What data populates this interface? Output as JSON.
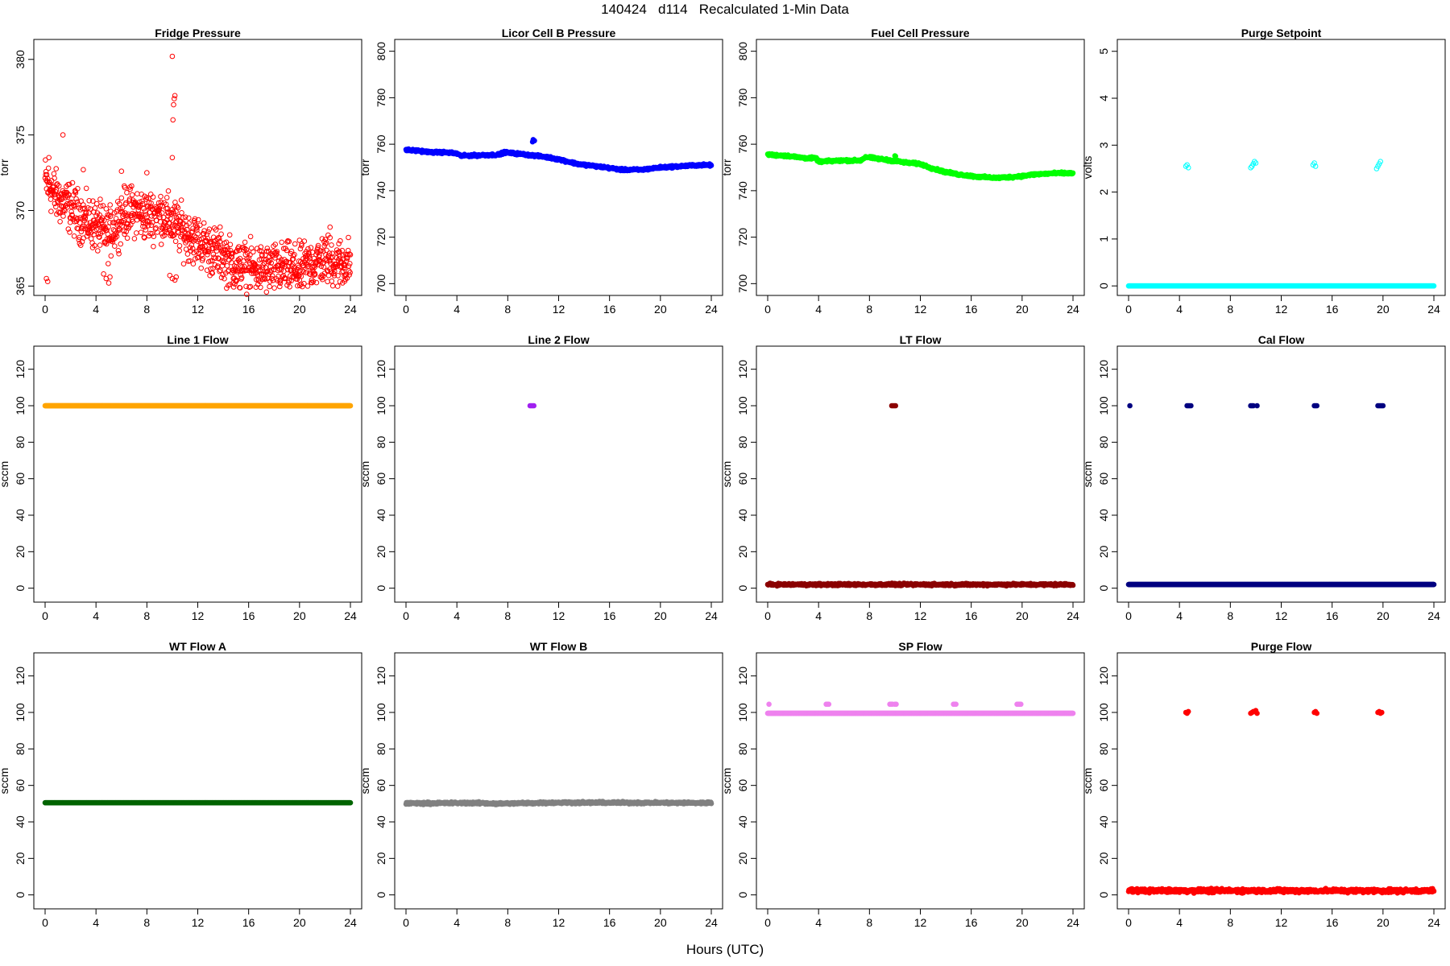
{
  "figure": {
    "title": "140424   d114   Recalculated 1-Min Data",
    "xlabel": "Hours (UTC)"
  },
  "chart_data": [
    {
      "type": "scatter",
      "title": "Fridge Pressure",
      "ylabel": "torr",
      "xlim": [
        0,
        24
      ],
      "ylim": [
        364.7,
        381
      ],
      "yticks": [
        365,
        370,
        375,
        380
      ],
      "xticks": [
        0,
        4,
        8,
        12,
        16,
        20,
        24
      ],
      "marker": "open",
      "color": "#ff0000",
      "series": [
        {
          "segments": [
            [
              0,
              372.0
            ],
            [
              1,
              370.8
            ],
            [
              2,
              370.2
            ],
            [
              3,
              369.4
            ],
            [
              4,
              369.0
            ],
            [
              5,
              368.4
            ],
            [
              6,
              369.7
            ],
            [
              7,
              370.0
            ],
            [
              8,
              369.6
            ],
            [
              9,
              369.8
            ],
            [
              10,
              369.2
            ],
            [
              11,
              368.5
            ],
            [
              12,
              368.0
            ],
            [
              13,
              367.4
            ],
            [
              14,
              367.0
            ],
            [
              15,
              366.3
            ],
            [
              16,
              366.2
            ],
            [
              17,
              366.1
            ],
            [
              18,
              366.1
            ],
            [
              19,
              366.2
            ],
            [
              20,
              366.0
            ],
            [
              21,
              366.5
            ],
            [
              22,
              366.8
            ],
            [
              23,
              366.5
            ],
            [
              24,
              366.6
            ]
          ],
          "spread": 1.4
        },
        {
          "points": [
            [
              0.1,
              365.5
            ],
            [
              0.2,
              365.3
            ],
            [
              4.6,
              365.8
            ],
            [
              4.8,
              365.5
            ],
            [
              5.0,
              365.2
            ],
            [
              5.1,
              365.6
            ],
            [
              9.8,
              365.7
            ],
            [
              10.0,
              365.5
            ],
            [
              10.2,
              365.4
            ],
            [
              10.3,
              365.6
            ],
            [
              1.4,
              375.0
            ],
            [
              0.3,
              373.5
            ],
            [
              3.0,
              372.7
            ],
            [
              6.0,
              372.6
            ],
            [
              8.0,
              372.5
            ],
            [
              10.0,
              373.5
            ],
            [
              10.05,
              376.0
            ],
            [
              10.1,
              377.0
            ],
            [
              10.15,
              377.4
            ],
            [
              10.2,
              377.6
            ],
            [
              10.0,
              380.2
            ],
            [
              14.8,
              365.5
            ],
            [
              15.0,
              365.3
            ],
            [
              20.0,
              365.4
            ],
            [
              22.4,
              368.9
            ]
          ]
        }
      ]
    },
    {
      "type": "scatter",
      "title": "Licor Cell B Pressure",
      "ylabel": "torr",
      "xlim": [
        0,
        24
      ],
      "ylim": [
        697,
        803
      ],
      "yticks": [
        700,
        720,
        740,
        760,
        780,
        800
      ],
      "xticks": [
        0,
        4,
        8,
        12,
        16,
        20,
        24
      ],
      "marker": "filled",
      "color": "#0000ff",
      "series": [
        {
          "segments": [
            [
              0,
              757.5
            ],
            [
              1,
              757.2
            ],
            [
              2,
              756.5
            ],
            [
              3,
              756.5
            ],
            [
              4,
              756.0
            ],
            [
              4.3,
              755.0
            ],
            [
              6,
              755.3
            ],
            [
              7.3,
              755.5
            ],
            [
              7.7,
              756.5
            ],
            [
              9,
              755.8
            ],
            [
              11,
              754.5
            ],
            [
              12,
              753.5
            ],
            [
              13.5,
              751.5
            ],
            [
              15,
              750.5
            ],
            [
              17,
              749.0
            ],
            [
              18.5,
              749.0
            ],
            [
              20,
              750.0
            ],
            [
              21.5,
              750.5
            ],
            [
              23,
              751.0
            ],
            [
              24,
              751.0
            ]
          ],
          "spread": 0.4
        },
        {
          "points": [
            [
              10.0,
              762.0
            ],
            [
              10.1,
              761.5
            ],
            [
              9.95,
              761.0
            ]
          ]
        }
      ]
    },
    {
      "type": "scatter",
      "title": "Fuel Cell Pressure",
      "ylabel": "torr",
      "xlim": [
        0,
        24
      ],
      "ylim": [
        697,
        803
      ],
      "yticks": [
        700,
        720,
        740,
        760,
        780,
        800
      ],
      "xticks": [
        0,
        4,
        8,
        12,
        16,
        20,
        24
      ],
      "marker": "filled",
      "color": "#00ff00",
      "series": [
        {
          "segments": [
            [
              0,
              755.5
            ],
            [
              1.5,
              755.0
            ],
            [
              3,
              754.0
            ],
            [
              3.8,
              754.0
            ],
            [
              4,
              752.5
            ],
            [
              6,
              753.0
            ],
            [
              7.3,
              753.0
            ],
            [
              7.7,
              754.5
            ],
            [
              9,
              753.5
            ],
            [
              11,
              752.0
            ],
            [
              12,
              751.5
            ],
            [
              13,
              749.5
            ],
            [
              14,
              748.0
            ],
            [
              15,
              747.0
            ],
            [
              16.5,
              746.0
            ],
            [
              18,
              745.5
            ],
            [
              19.5,
              746.0
            ],
            [
              21,
              747.0
            ],
            [
              22.5,
              747.5
            ],
            [
              24,
              747.5
            ]
          ],
          "spread": 0.4
        },
        {
          "points": [
            [
              10.0,
              755.0
            ],
            [
              10.05,
              754.8
            ]
          ]
        }
      ]
    },
    {
      "type": "scatter",
      "title": "Purge Setpoint",
      "ylabel": "volts",
      "xlim": [
        0,
        24
      ],
      "ylim": [
        -0.1,
        5.15
      ],
      "yticks": [
        0,
        1,
        2,
        3,
        4,
        5
      ],
      "xticks": [
        0,
        4,
        8,
        12,
        16,
        20,
        24
      ],
      "marker": "open",
      "color": "#00ffff",
      "series": [
        {
          "segments": [
            [
              0,
              0.0
            ],
            [
              24,
              0.0
            ]
          ],
          "spread": 0.0
        },
        {
          "points": [
            [
              4.5,
              2.55
            ],
            [
              4.6,
              2.58
            ],
            [
              4.7,
              2.52
            ],
            [
              9.6,
              2.52
            ],
            [
              9.7,
              2.55
            ],
            [
              9.8,
              2.6
            ],
            [
              9.9,
              2.65
            ],
            [
              10.0,
              2.62
            ],
            [
              14.5,
              2.58
            ],
            [
              14.6,
              2.62
            ],
            [
              14.7,
              2.55
            ],
            [
              19.5,
              2.5
            ],
            [
              19.6,
              2.55
            ],
            [
              19.7,
              2.6
            ],
            [
              19.8,
              2.65
            ]
          ]
        }
      ]
    },
    {
      "type": "scatter",
      "title": "Line 1 Flow",
      "ylabel": "sccm",
      "xlim": [
        0,
        24
      ],
      "ylim": [
        -5,
        130
      ],
      "yticks": [
        0,
        20,
        40,
        60,
        80,
        100,
        120
      ],
      "xticks": [
        0,
        4,
        8,
        12,
        16,
        20,
        24
      ],
      "marker": "filled",
      "color": "#ffa500",
      "series": [
        {
          "segments": [
            [
              0,
              100
            ],
            [
              24,
              100
            ]
          ],
          "spread": 0.0
        }
      ]
    },
    {
      "type": "scatter",
      "title": "Line 2 Flow",
      "ylabel": "sccm",
      "xlim": [
        0,
        24
      ],
      "ylim": [
        -5,
        130
      ],
      "yticks": [
        0,
        20,
        40,
        60,
        80,
        100,
        120
      ],
      "xticks": [
        0,
        4,
        8,
        12,
        16,
        20,
        24
      ],
      "marker": "filled",
      "color": "#a020f0",
      "series": [
        {
          "points": [
            [
              9.75,
              100
            ],
            [
              9.85,
              100
            ],
            [
              9.95,
              100
            ],
            [
              10.05,
              100
            ]
          ]
        }
      ]
    },
    {
      "type": "scatter",
      "title": "LT Flow",
      "ylabel": "sccm",
      "xlim": [
        0,
        24
      ],
      "ylim": [
        -5,
        130
      ],
      "yticks": [
        0,
        20,
        40,
        60,
        80,
        100,
        120
      ],
      "xticks": [
        0,
        4,
        8,
        12,
        16,
        20,
        24
      ],
      "marker": "filled",
      "color": "#8b0000",
      "series": [
        {
          "segments": [
            [
              0,
              2
            ],
            [
              24,
              2
            ]
          ],
          "spread": 0.5
        },
        {
          "points": [
            [
              9.75,
              100
            ],
            [
              9.85,
              100
            ],
            [
              9.95,
              100
            ],
            [
              10.05,
              100
            ]
          ]
        }
      ]
    },
    {
      "type": "scatter",
      "title": "Cal Flow",
      "ylabel": "sccm",
      "xlim": [
        0,
        24
      ],
      "ylim": [
        -5,
        130
      ],
      "yticks": [
        0,
        20,
        40,
        60,
        80,
        100,
        120
      ],
      "xticks": [
        0,
        4,
        8,
        12,
        16,
        20,
        24
      ],
      "marker": "filled",
      "color": "#000080",
      "series": [
        {
          "segments": [
            [
              0,
              2
            ],
            [
              24,
              2
            ]
          ],
          "spread": 0.0
        },
        {
          "points": [
            [
              0.1,
              100
            ],
            [
              4.6,
              100
            ],
            [
              4.7,
              100
            ],
            [
              4.8,
              100
            ],
            [
              4.9,
              100
            ],
            [
              9.6,
              100
            ],
            [
              9.7,
              100
            ],
            [
              9.8,
              100
            ],
            [
              10.1,
              100
            ],
            [
              14.6,
              100
            ],
            [
              14.7,
              100
            ],
            [
              14.8,
              100
            ],
            [
              19.6,
              100
            ],
            [
              19.7,
              100
            ],
            [
              19.8,
              100
            ],
            [
              19.9,
              100
            ],
            [
              20.0,
              100
            ]
          ]
        }
      ]
    },
    {
      "type": "scatter",
      "title": "WT Flow A",
      "ylabel": "sccm",
      "xlim": [
        0,
        24
      ],
      "ylim": [
        -5,
        130
      ],
      "yticks": [
        0,
        20,
        40,
        60,
        80,
        100,
        120
      ],
      "xticks": [
        0,
        4,
        8,
        12,
        16,
        20,
        24
      ],
      "marker": "filled",
      "color": "#006400",
      "series": [
        {
          "segments": [
            [
              0,
              50.5
            ],
            [
              24,
              50.5
            ]
          ],
          "spread": 0.0
        }
      ]
    },
    {
      "type": "scatter",
      "title": "WT Flow B",
      "ylabel": "sccm",
      "xlim": [
        0,
        24
      ],
      "ylim": [
        -5,
        130
      ],
      "yticks": [
        0,
        20,
        40,
        60,
        80,
        100,
        120
      ],
      "xticks": [
        0,
        4,
        8,
        12,
        16,
        20,
        24
      ],
      "marker": "filled",
      "color": "#808080",
      "series": [
        {
          "segments": [
            [
              0,
              50.2
            ],
            [
              6,
              50.4
            ],
            [
              7,
              50.0
            ],
            [
              12,
              50.6
            ],
            [
              24,
              50.4
            ]
          ],
          "spread": 0.5
        }
      ]
    },
    {
      "type": "scatter",
      "title": "SP Flow",
      "ylabel": "sccm",
      "xlim": [
        0,
        24
      ],
      "ylim": [
        -5,
        130
      ],
      "yticks": [
        0,
        20,
        40,
        60,
        80,
        100,
        120
      ],
      "xticks": [
        0,
        4,
        8,
        12,
        16,
        20,
        24
      ],
      "marker": "filled",
      "color": "#ee82ee",
      "series": [
        {
          "segments": [
            [
              0,
              99.5
            ],
            [
              24,
              99.5
            ]
          ],
          "spread": 0.0
        },
        {
          "points": [
            [
              0.1,
              104.5
            ],
            [
              4.6,
              104.5
            ],
            [
              4.7,
              104.5
            ],
            [
              4.8,
              104.5
            ],
            [
              9.6,
              104.5
            ],
            [
              9.7,
              104.5
            ],
            [
              9.8,
              104.5
            ],
            [
              10.0,
              104.5
            ],
            [
              10.1,
              104.5
            ],
            [
              14.6,
              104.5
            ],
            [
              14.7,
              104.5
            ],
            [
              14.8,
              104.5
            ],
            [
              19.6,
              104.5
            ],
            [
              19.7,
              104.5
            ],
            [
              19.8,
              104.5
            ],
            [
              19.9,
              104.5
            ]
          ]
        }
      ]
    },
    {
      "type": "scatter",
      "title": "Purge Flow",
      "ylabel": "sccm",
      "xlim": [
        0,
        24
      ],
      "ylim": [
        -5,
        130
      ],
      "yticks": [
        0,
        20,
        40,
        60,
        80,
        100,
        120
      ],
      "xticks": [
        0,
        4,
        8,
        12,
        16,
        20,
        24
      ],
      "marker": "filled",
      "color": "#ff0000",
      "series": [
        {
          "segments": [
            [
              0,
              2.3
            ],
            [
              24,
              2.3
            ]
          ],
          "spread": 0.9
        },
        {
          "points": [
            [
              4.5,
              100
            ],
            [
              4.6,
              99.5
            ],
            [
              4.7,
              100.5
            ],
            [
              9.6,
              99.5
            ],
            [
              9.7,
              100
            ],
            [
              9.8,
              100.5
            ],
            [
              10.0,
              101
            ],
            [
              10.1,
              99.5
            ],
            [
              14.6,
              100
            ],
            [
              14.7,
              100.5
            ],
            [
              14.8,
              99.5
            ],
            [
              19.6,
              100
            ],
            [
              19.7,
              100.5
            ],
            [
              19.8,
              99.5
            ],
            [
              19.9,
              100
            ]
          ]
        }
      ]
    }
  ]
}
